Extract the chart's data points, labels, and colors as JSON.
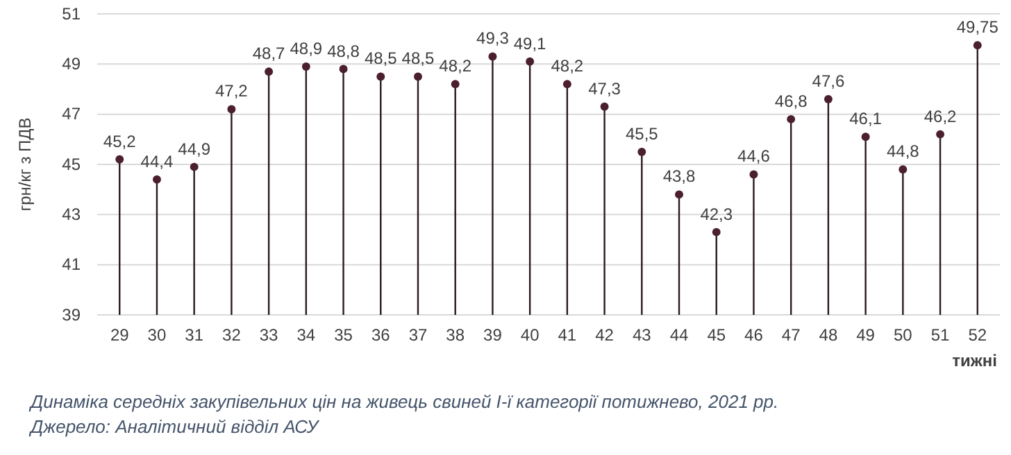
{
  "chart_data": {
    "type": "lollipop",
    "xlabel": "тижні",
    "ylabel": "грн/кг з ПДВ",
    "categories": [
      "29",
      "30",
      "31",
      "32",
      "33",
      "34",
      "35",
      "36",
      "37",
      "38",
      "39",
      "40",
      "41",
      "42",
      "43",
      "44",
      "45",
      "46",
      "47",
      "48",
      "49",
      "50",
      "51",
      "52"
    ],
    "values": [
      45.2,
      44.4,
      44.9,
      47.2,
      48.7,
      48.9,
      48.8,
      48.5,
      48.5,
      48.2,
      49.3,
      49.1,
      48.2,
      47.3,
      45.5,
      43.8,
      42.3,
      44.6,
      46.8,
      47.6,
      46.1,
      44.8,
      46.2,
      49.75
    ],
    "value_labels": [
      "45,2",
      "44,4",
      "44,9",
      "47,2",
      "48,7",
      "48,9",
      "48,8",
      "48,5",
      "48,5",
      "48,2",
      "49,3",
      "49,1",
      "48,2",
      "47,3",
      "45,5",
      "43,8",
      "42,3",
      "44,6",
      "46,8",
      "47,6",
      "46,1",
      "44,8",
      "46,2",
      "49,75"
    ],
    "color": "#4b1f2f",
    "marker": "circle",
    "ylim": [
      39,
      51
    ],
    "yticks": [
      39,
      41,
      43,
      45,
      47,
      49,
      51
    ],
    "grid": "y",
    "annotations": [
      "Динаміка середніх закупівельних цін на живець свиней І-ї категорії потижнево, 2021 рр.",
      "Джерело: Аналітичний відділ АСУ"
    ]
  }
}
